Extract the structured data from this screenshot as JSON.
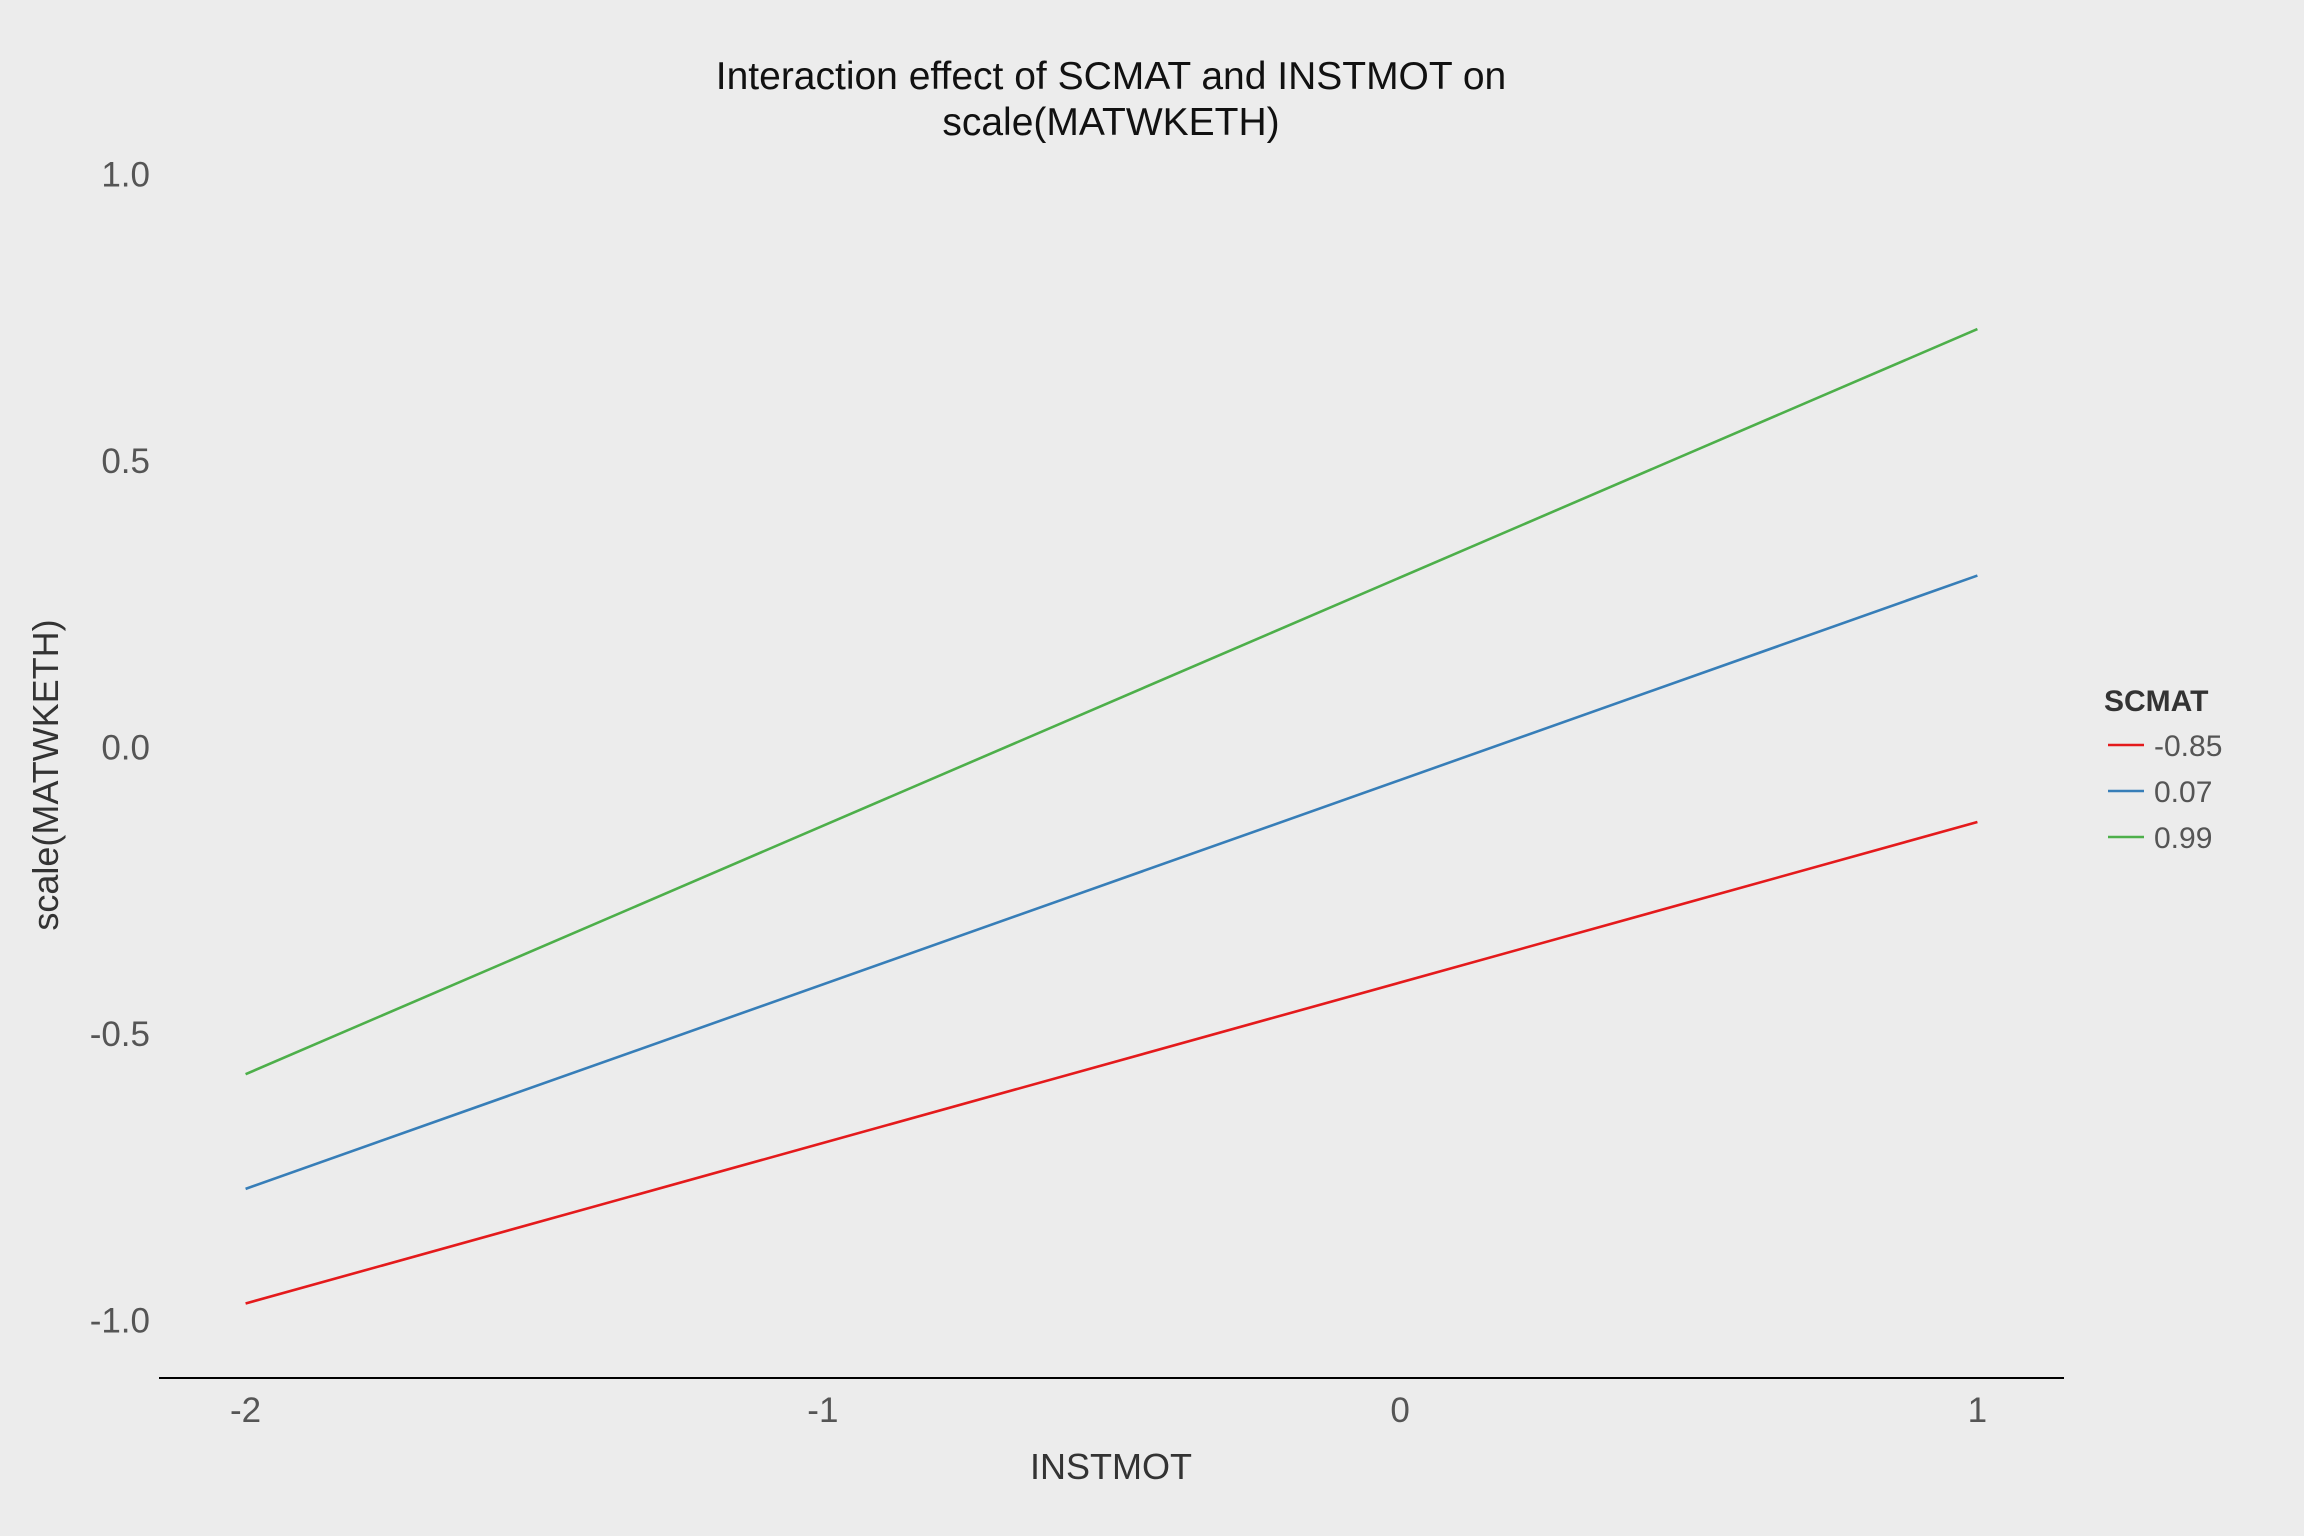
{
  "chart_data": {
    "type": "line",
    "title_line1": "Interaction effect of SCMAT and INSTMOT on",
    "title_line2": "scale(MATWKETH)",
    "xlabel": "INSTMOT",
    "ylabel": "scale(MATWKETH)",
    "x": [
      -2,
      1
    ],
    "xlim": [
      -2.15,
      1.15
    ],
    "ylim": [
      -1.1,
      1.1
    ],
    "x_ticks": [
      -2,
      -1,
      0,
      1
    ],
    "x_tick_labels": [
      "-2",
      "-1",
      "0",
      "1"
    ],
    "y_ticks": [
      -1.0,
      -0.5,
      0.0,
      0.5,
      1.0
    ],
    "y_tick_labels": [
      "-1.0",
      "-0.5",
      "0.0",
      "0.5",
      "1.0"
    ],
    "grid": false,
    "legend": {
      "title": "SCMAT",
      "placement": "right"
    },
    "series": [
      {
        "name": "-0.85",
        "color": "#e41a1c",
        "values": [
          -0.97,
          -0.13
        ]
      },
      {
        "name": "0.07",
        "color": "#377eb8",
        "values": [
          -0.77,
          0.3
        ]
      },
      {
        "name": "0.99",
        "color": "#4daf4a",
        "values": [
          -0.57,
          0.73
        ]
      }
    ]
  }
}
